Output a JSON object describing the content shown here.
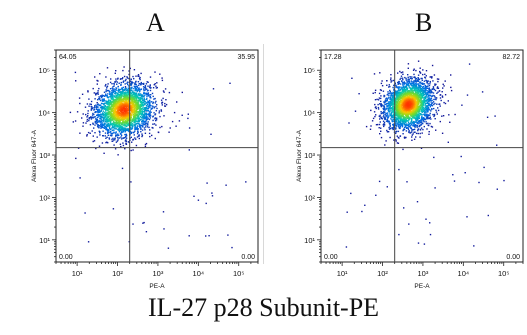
{
  "figure_title": "IL-27 p28 Subunit-PE",
  "colors": {
    "axis": "#222222",
    "quad_line": "#444444",
    "density_low": "#1a1aa8",
    "density_high": "#ff3300"
  },
  "chart_data": [
    {
      "type": "scatter",
      "panel_label": "A",
      "xlabel": "PE-A",
      "ylabel": "Alexa Fluor 647-A",
      "x_scale": "log",
      "y_scale": "log",
      "xlim": [
        3,
        300000
      ],
      "ylim": [
        3,
        300000
      ],
      "x_ticks": [
        "10¹",
        "10²",
        "10³",
        "10⁴",
        "10⁵"
      ],
      "y_ticks": [
        "10¹",
        "10²",
        "10³",
        "10⁴",
        "10⁵"
      ],
      "quadrant_gate": {
        "x": 200,
        "y": 1500
      },
      "quadrant_percentages": {
        "top_left": "64.05",
        "top_right": "35.95",
        "bottom_left": "0.00",
        "bottom_right": "0.00"
      },
      "population": {
        "center_x": 140,
        "center_y": 12000,
        "spread_log_x": 0.38,
        "spread_log_y": 0.32
      },
      "grid": false
    },
    {
      "type": "scatter",
      "panel_label": "B",
      "xlabel": "PE-A",
      "ylabel": "Alexa Fluor 647-A",
      "x_scale": "log",
      "y_scale": "log",
      "xlim": [
        3,
        300000
      ],
      "ylim": [
        3,
        300000
      ],
      "x_ticks": [
        "10¹",
        "10²",
        "10³",
        "10⁴",
        "10⁵"
      ],
      "y_ticks": [
        "10¹",
        "10²",
        "10³",
        "10⁴",
        "10⁵"
      ],
      "quadrant_gate": {
        "x": 200,
        "y": 1500
      },
      "quadrant_percentages": {
        "top_left": "17.28",
        "top_right": "82.72",
        "bottom_left": "0.00",
        "bottom_right": "0.00"
      },
      "population": {
        "center_x": 420,
        "center_y": 16000,
        "spread_log_x": 0.32,
        "spread_log_y": 0.3
      },
      "grid": false
    }
  ]
}
